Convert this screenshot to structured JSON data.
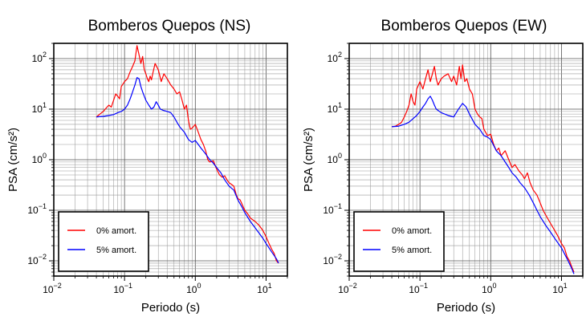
{
  "chart_data": [
    {
      "type": "line",
      "title": "Bomberos Quepos (NS)",
      "xlabel": "Periodo (s)",
      "ylabel": "PSA (cm/s²)",
      "xscale": "log",
      "yscale": "log",
      "xlim": [
        0.01,
        20
      ],
      "ylim": [
        0.005,
        200
      ],
      "grid": true,
      "legend_position": "bottom-left",
      "xticks": [
        {
          "base": "10",
          "exp": "−2"
        },
        {
          "base": "10",
          "exp": "−1"
        },
        {
          "base": "10",
          "exp": "0"
        },
        {
          "base": "10",
          "exp": "1"
        }
      ],
      "yticks": [
        {
          "base": "10",
          "exp": "−2"
        },
        {
          "base": "10",
          "exp": "−1"
        },
        {
          "base": "10",
          "exp": "0"
        },
        {
          "base": "10",
          "exp": "1"
        },
        {
          "base": "10",
          "exp": "2"
        }
      ],
      "series": [
        {
          "name": "0% amort.",
          "color": "#ff0000",
          "points": [
            [
              0.04,
              7.0
            ],
            [
              0.045,
              8.0
            ],
            [
              0.05,
              9.0
            ],
            [
              0.055,
              10.5
            ],
            [
              0.06,
              12.0
            ],
            [
              0.065,
              11.0
            ],
            [
              0.07,
              15.0
            ],
            [
              0.075,
              20.0
            ],
            [
              0.08,
              18.0
            ],
            [
              0.085,
              16.0
            ],
            [
              0.09,
              28.0
            ],
            [
              0.1,
              35.0
            ],
            [
              0.11,
              40.0
            ],
            [
              0.12,
              55.0
            ],
            [
              0.13,
              70.0
            ],
            [
              0.14,
              90.0
            ],
            [
              0.15,
              180.0
            ],
            [
              0.16,
              120.0
            ],
            [
              0.17,
              80.0
            ],
            [
              0.18,
              110.0
            ],
            [
              0.19,
              60.0
            ],
            [
              0.2,
              50.0
            ],
            [
              0.21,
              40.0
            ],
            [
              0.22,
              35.0
            ],
            [
              0.23,
              45.0
            ],
            [
              0.24,
              38.0
            ],
            [
              0.25,
              50.0
            ],
            [
              0.27,
              80.0
            ],
            [
              0.3,
              60.0
            ],
            [
              0.33,
              35.0
            ],
            [
              0.36,
              50.0
            ],
            [
              0.4,
              40.0
            ],
            [
              0.45,
              30.0
            ],
            [
              0.5,
              25.0
            ],
            [
              0.55,
              20.0
            ],
            [
              0.6,
              22.0
            ],
            [
              0.65,
              15.0
            ],
            [
              0.7,
              10.0
            ],
            [
              0.75,
              12.0
            ],
            [
              0.8,
              6.0
            ],
            [
              0.85,
              4.0
            ],
            [
              0.9,
              4.2
            ],
            [
              1.0,
              5.0
            ],
            [
              1.1,
              3.5
            ],
            [
              1.2,
              2.5
            ],
            [
              1.3,
              2.0
            ],
            [
              1.4,
              1.5
            ],
            [
              1.5,
              1.0
            ],
            [
              1.6,
              0.9
            ],
            [
              1.8,
              0.95
            ],
            [
              2.0,
              0.65
            ],
            [
              2.2,
              0.5
            ],
            [
              2.4,
              0.45
            ],
            [
              2.6,
              0.48
            ],
            [
              2.8,
              0.4
            ],
            [
              3.0,
              0.35
            ],
            [
              3.2,
              0.33
            ],
            [
              3.5,
              0.3
            ],
            [
              3.8,
              0.2
            ],
            [
              4.0,
              0.17
            ],
            [
              4.3,
              0.16
            ],
            [
              4.6,
              0.13
            ],
            [
              5.0,
              0.1
            ],
            [
              5.5,
              0.085
            ],
            [
              6.0,
              0.07
            ],
            [
              7.0,
              0.06
            ],
            [
              8.0,
              0.05
            ],
            [
              9.0,
              0.04
            ],
            [
              10.0,
              0.03
            ],
            [
              11.0,
              0.022
            ],
            [
              12.0,
              0.017
            ],
            [
              13.0,
              0.014
            ],
            [
              14.0,
              0.01
            ],
            [
              15.0,
              0.009
            ]
          ]
        },
        {
          "name": "5% amort.",
          "color": "#0000ff",
          "points": [
            [
              0.04,
              7.0
            ],
            [
              0.05,
              7.2
            ],
            [
              0.06,
              7.5
            ],
            [
              0.07,
              7.8
            ],
            [
              0.08,
              8.5
            ],
            [
              0.09,
              9.0
            ],
            [
              0.1,
              10.0
            ],
            [
              0.11,
              12.0
            ],
            [
              0.12,
              16.0
            ],
            [
              0.13,
              22.0
            ],
            [
              0.14,
              30.0
            ],
            [
              0.15,
              42.0
            ],
            [
              0.16,
              40.0
            ],
            [
              0.17,
              28.0
            ],
            [
              0.18,
              22.0
            ],
            [
              0.19,
              18.0
            ],
            [
              0.2,
              15.0
            ],
            [
              0.22,
              12.0
            ],
            [
              0.24,
              10.0
            ],
            [
              0.26,
              11.0
            ],
            [
              0.28,
              14.0
            ],
            [
              0.3,
              12.0
            ],
            [
              0.32,
              10.0
            ],
            [
              0.35,
              9.5
            ],
            [
              0.4,
              9.0
            ],
            [
              0.45,
              8.5
            ],
            [
              0.5,
              7.0
            ],
            [
              0.55,
              5.5
            ],
            [
              0.6,
              4.5
            ],
            [
              0.7,
              3.5
            ],
            [
              0.8,
              2.5
            ],
            [
              0.9,
              2.2
            ],
            [
              1.0,
              2.4
            ],
            [
              1.1,
              2.0
            ],
            [
              1.2,
              1.7
            ],
            [
              1.4,
              1.3
            ],
            [
              1.6,
              1.0
            ],
            [
              1.8,
              0.85
            ],
            [
              2.0,
              0.7
            ],
            [
              2.3,
              0.55
            ],
            [
              2.6,
              0.4
            ],
            [
              3.0,
              0.3
            ],
            [
              3.5,
              0.25
            ],
            [
              4.0,
              0.16
            ],
            [
              4.5,
              0.12
            ],
            [
              5.0,
              0.09
            ],
            [
              6.0,
              0.06
            ],
            [
              7.0,
              0.045
            ],
            [
              8.0,
              0.035
            ],
            [
              9.0,
              0.028
            ],
            [
              10.0,
              0.022
            ],
            [
              12.0,
              0.015
            ],
            [
              14.0,
              0.011
            ],
            [
              15.0,
              0.009
            ]
          ]
        }
      ]
    },
    {
      "type": "line",
      "title": "Bomberos Quepos (EW)",
      "xlabel": "Periodo (s)",
      "ylabel": "PSA (cm/s²)",
      "xscale": "log",
      "yscale": "log",
      "xlim": [
        0.01,
        20
      ],
      "ylim": [
        0.005,
        200
      ],
      "grid": true,
      "legend_position": "bottom-left",
      "xticks": [
        {
          "base": "10",
          "exp": "−2"
        },
        {
          "base": "10",
          "exp": "−1"
        },
        {
          "base": "10",
          "exp": "0"
        },
        {
          "base": "10",
          "exp": "1"
        }
      ],
      "yticks": [
        {
          "base": "10",
          "exp": "−2"
        },
        {
          "base": "10",
          "exp": "−1"
        },
        {
          "base": "10",
          "exp": "0"
        },
        {
          "base": "10",
          "exp": "1"
        },
        {
          "base": "10",
          "exp": "2"
        }
      ],
      "series": [
        {
          "name": "0% amort.",
          "color": "#ff0000",
          "points": [
            [
              0.04,
              4.5
            ],
            [
              0.045,
              4.6
            ],
            [
              0.05,
              5.0
            ],
            [
              0.055,
              5.5
            ],
            [
              0.06,
              7.0
            ],
            [
              0.065,
              9.0
            ],
            [
              0.07,
              12.0
            ],
            [
              0.075,
              20.0
            ],
            [
              0.08,
              14.0
            ],
            [
              0.085,
              12.0
            ],
            [
              0.09,
              25.0
            ],
            [
              0.1,
              35.0
            ],
            [
              0.11,
              25.0
            ],
            [
              0.12,
              40.0
            ],
            [
              0.13,
              60.0
            ],
            [
              0.14,
              35.0
            ],
            [
              0.15,
              50.0
            ],
            [
              0.16,
              70.0
            ],
            [
              0.17,
              40.0
            ],
            [
              0.18,
              30.0
            ],
            [
              0.2,
              40.0
            ],
            [
              0.22,
              45.0
            ],
            [
              0.25,
              50.0
            ],
            [
              0.28,
              35.0
            ],
            [
              0.3,
              45.0
            ],
            [
              0.33,
              30.0
            ],
            [
              0.36,
              70.0
            ],
            [
              0.38,
              40.0
            ],
            [
              0.4,
              75.0
            ],
            [
              0.43,
              35.0
            ],
            [
              0.46,
              40.0
            ],
            [
              0.5,
              25.0
            ],
            [
              0.55,
              20.0
            ],
            [
              0.6,
              10.0
            ],
            [
              0.65,
              8.0
            ],
            [
              0.7,
              7.0
            ],
            [
              0.75,
              6.5
            ],
            [
              0.8,
              4.0
            ],
            [
              0.9,
              3.0
            ],
            [
              1.0,
              3.2
            ],
            [
              1.1,
              2.0
            ],
            [
              1.2,
              1.5
            ],
            [
              1.3,
              1.7
            ],
            [
              1.4,
              1.2
            ],
            [
              1.6,
              1.5
            ],
            [
              1.8,
              1.0
            ],
            [
              2.0,
              0.7
            ],
            [
              2.2,
              0.8
            ],
            [
              2.5,
              0.6
            ],
            [
              2.8,
              0.5
            ],
            [
              3.0,
              0.42
            ],
            [
              3.3,
              0.55
            ],
            [
              3.6,
              0.35
            ],
            [
              4.0,
              0.25
            ],
            [
              4.5,
              0.2
            ],
            [
              5.0,
              0.14
            ],
            [
              5.5,
              0.1
            ],
            [
              6.0,
              0.08
            ],
            [
              7.0,
              0.055
            ],
            [
              8.0,
              0.04
            ],
            [
              9.0,
              0.03
            ],
            [
              10.0,
              0.022
            ],
            [
              11.0,
              0.018
            ],
            [
              12.0,
              0.012
            ],
            [
              13.0,
              0.01
            ],
            [
              14.0,
              0.0075
            ],
            [
              15.0,
              0.006
            ]
          ]
        },
        {
          "name": "5% amort.",
          "color": "#0000ff",
          "points": [
            [
              0.04,
              4.5
            ],
            [
              0.05,
              4.6
            ],
            [
              0.06,
              5.0
            ],
            [
              0.07,
              5.5
            ],
            [
              0.08,
              6.5
            ],
            [
              0.09,
              7.5
            ],
            [
              0.1,
              9.0
            ],
            [
              0.11,
              11.0
            ],
            [
              0.12,
              13.0
            ],
            [
              0.13,
              16.0
            ],
            [
              0.14,
              18.0
            ],
            [
              0.15,
              15.0
            ],
            [
              0.16,
              12.0
            ],
            [
              0.17,
              10.0
            ],
            [
              0.2,
              8.5
            ],
            [
              0.25,
              7.5
            ],
            [
              0.3,
              7.0
            ],
            [
              0.35,
              10.0
            ],
            [
              0.4,
              13.0
            ],
            [
              0.45,
              11.0
            ],
            [
              0.5,
              8.0
            ],
            [
              0.6,
              5.0
            ],
            [
              0.7,
              4.0
            ],
            [
              0.8,
              3.0
            ],
            [
              0.9,
              2.8
            ],
            [
              1.0,
              2.5
            ],
            [
              1.2,
              1.5
            ],
            [
              1.4,
              1.2
            ],
            [
              1.6,
              0.9
            ],
            [
              1.8,
              0.7
            ],
            [
              2.0,
              0.55
            ],
            [
              2.3,
              0.45
            ],
            [
              2.6,
              0.35
            ],
            [
              3.0,
              0.28
            ],
            [
              3.5,
              0.2
            ],
            [
              4.0,
              0.14
            ],
            [
              4.5,
              0.1
            ],
            [
              5.0,
              0.075
            ],
            [
              6.0,
              0.05
            ],
            [
              7.0,
              0.037
            ],
            [
              8.0,
              0.028
            ],
            [
              10.0,
              0.018
            ],
            [
              12.0,
              0.011
            ],
            [
              14.0,
              0.007
            ],
            [
              15.0,
              0.0055
            ]
          ]
        }
      ]
    }
  ]
}
